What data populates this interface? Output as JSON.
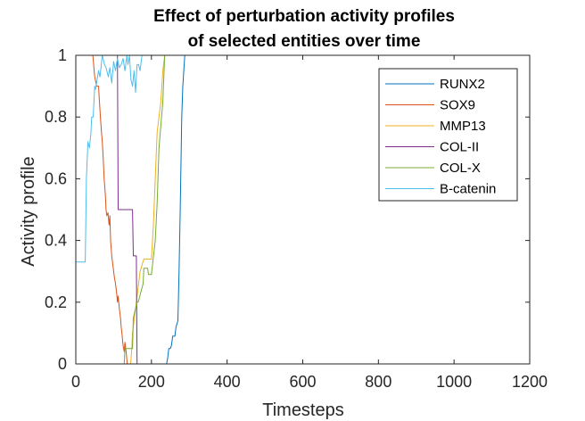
{
  "chart_data": {
    "type": "line",
    "title": [
      "Effect of perturbation activity profiles",
      "of selected entities over time"
    ],
    "xlabel": "Timesteps",
    "ylabel": "Activity profile",
    "xlim": [
      0,
      1200
    ],
    "ylim": [
      0,
      1
    ],
    "xticks": [
      0,
      200,
      400,
      600,
      800,
      1000,
      1200
    ],
    "xtick_labels": [
      "0",
      "200",
      "400",
      "600",
      "800",
      "1000",
      "1200"
    ],
    "yticks": [
      0,
      0.2,
      0.4,
      0.6,
      0.8,
      1
    ],
    "ytick_labels": [
      "0",
      "0.2",
      "0.4",
      "0.6",
      "0.8",
      "1"
    ],
    "grid": false,
    "legend_position": "top-right",
    "series": [
      {
        "name": "RUNX2",
        "color": "#0072BD",
        "x": [
          0,
          240,
          243,
          246,
          250,
          253,
          256,
          262,
          265,
          270,
          273,
          276,
          280,
          283,
          288,
          1000
        ],
        "y": [
          0,
          0,
          0.02,
          0.05,
          0.05,
          0.06,
          0.09,
          0.09,
          0.12,
          0.14,
          0.3,
          0.5,
          0.8,
          0.9,
          1,
          1
        ]
      },
      {
        "name": "SOX9",
        "color": "#D95319",
        "x": [
          0,
          45,
          50,
          55,
          60,
          62,
          65,
          68,
          70,
          72,
          75,
          78,
          80,
          82,
          85,
          88,
          90,
          92,
          95,
          98,
          100,
          102,
          105,
          108,
          110,
          112,
          115,
          118,
          120,
          122,
          125,
          128,
          130,
          133,
          136,
          1000
        ],
        "y": [
          1,
          1,
          0.93,
          0.9,
          0.9,
          0.86,
          0.8,
          0.75,
          0.72,
          0.68,
          0.6,
          0.55,
          0.5,
          0.48,
          0.49,
          0.45,
          0.48,
          0.4,
          0.35,
          0.32,
          0.3,
          0.28,
          0.26,
          0.23,
          0.2,
          0.22,
          0.18,
          0.15,
          0.12,
          0.1,
          0.06,
          0.04,
          0.07,
          0.04,
          0,
          0
        ]
      },
      {
        "name": "MMP13",
        "color": "#EDB120",
        "x": [
          0,
          145,
          148,
          150,
          160,
          170,
          180,
          200,
          205,
          210,
          215,
          225,
          230,
          235,
          1000
        ],
        "y": [
          0,
          0,
          0.05,
          0.1,
          0.2,
          0.3,
          0.34,
          0.34,
          0.45,
          0.6,
          0.75,
          0.85,
          0.95,
          1,
          1
        ]
      },
      {
        "name": "COL-II",
        "color": "#7E2F8E",
        "x": [
          0,
          110,
          112,
          150,
          152,
          160,
          162,
          1000
        ],
        "y": [
          1,
          1,
          0.5,
          0.5,
          0.35,
          0.35,
          0,
          0
        ]
      },
      {
        "name": "COL-X",
        "color": "#77AC30",
        "x": [
          0,
          128,
          130,
          150,
          152,
          162,
          165,
          178,
          180,
          190,
          192,
          200,
          210,
          215,
          220,
          230,
          235,
          1000
        ],
        "y": [
          0,
          0,
          0.05,
          0.05,
          0.15,
          0.2,
          0.2,
          0.26,
          0.31,
          0.31,
          0.29,
          0.29,
          0.4,
          0.52,
          0.7,
          0.85,
          1,
          1
        ]
      },
      {
        "name": "B-catenin",
        "color": "#4DBEEE",
        "x": [
          0,
          2,
          25,
          28,
          32,
          36,
          40,
          42,
          46,
          50,
          52,
          56,
          60,
          64,
          70,
          76,
          80,
          86,
          90,
          95,
          100,
          105,
          110,
          115,
          120,
          125,
          130,
          135,
          138,
          142,
          146,
          150,
          154,
          158,
          162,
          166,
          170,
          175,
          180,
          1000
        ],
        "y": [
          0.33,
          0.33,
          0.33,
          0.6,
          0.72,
          0.7,
          0.75,
          0.8,
          0.8,
          0.9,
          0.89,
          0.92,
          0.95,
          0.93,
          1,
          0.97,
          0.96,
          0.93,
          0.96,
          0.91,
          0.98,
          0.95,
          0.99,
          0.96,
          0.97,
          0.99,
          0.95,
          1,
          0.97,
          1,
          0.92,
          0.9,
          0.95,
          0.88,
          0.97,
          0.97,
          0.95,
          1,
          1,
          1
        ]
      }
    ]
  }
}
